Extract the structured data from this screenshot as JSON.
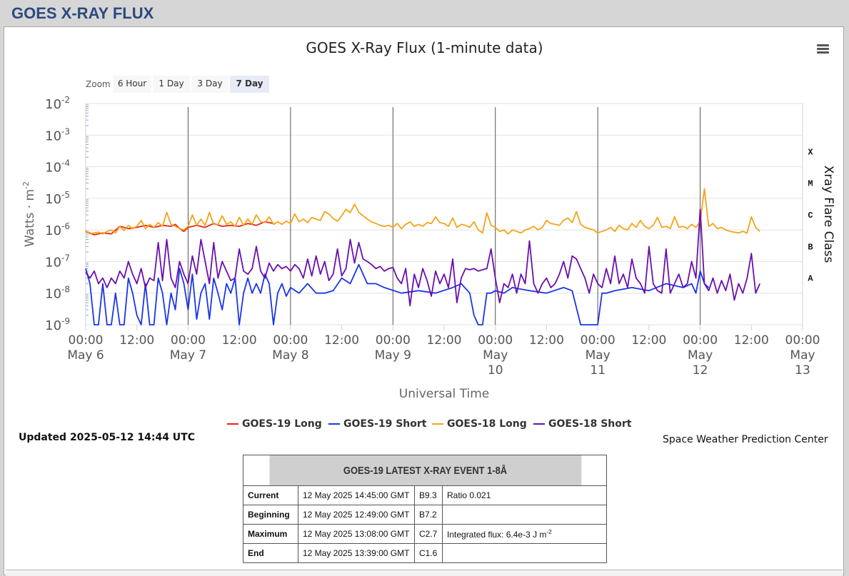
{
  "page": {
    "header": "GOES X-RAY FLUX"
  },
  "toolbar": {
    "zoom_label": "Zoom",
    "zoom_buttons": [
      "6 Hour",
      "1 Day",
      "3 Day",
      "7 Day"
    ],
    "active_zoom": "7 Day",
    "menu_icon": "hamburger-menu-icon"
  },
  "chart_data": {
    "type": "line",
    "title": "GOES X-Ray Flux (1-minute data)",
    "xlabel": "Universal Time",
    "ylabel": "Watts · m",
    "ylabel_sup": "-2",
    "y2label": "Xray Flare Class",
    "y_scale": "log",
    "ylim": [
      1e-09,
      0.01
    ],
    "y_ticks": [
      {
        "base": "10",
        "exp": "-2",
        "value": 0.01
      },
      {
        "base": "10",
        "exp": "-3",
        "value": 0.001
      },
      {
        "base": "10",
        "exp": "-4",
        "value": 0.0001
      },
      {
        "base": "10",
        "exp": "-5",
        "value": 1e-05
      },
      {
        "base": "10",
        "exp": "-6",
        "value": 1e-06
      },
      {
        "base": "10",
        "exp": "-7",
        "value": 1e-07
      },
      {
        "base": "10",
        "exp": "-8",
        "value": 1e-08
      },
      {
        "base": "10",
        "exp": "-9",
        "value": 1e-09
      }
    ],
    "flare_classes": [
      {
        "label": "X",
        "value": 0.0001
      },
      {
        "label": "M",
        "value": 1e-05
      },
      {
        "label": "C",
        "value": 1e-06
      },
      {
        "label": "B",
        "value": 1e-07
      },
      {
        "label": "A",
        "value": 1e-08
      }
    ],
    "xlim": [
      "2025-05-06 00:00",
      "2025-05-13 00:00"
    ],
    "x_ticks": [
      {
        "time": "00:00",
        "date": "May 6",
        "t": 0
      },
      {
        "time": "12:00",
        "date": "",
        "t": 12
      },
      {
        "time": "00:00",
        "date": "May 7",
        "t": 24
      },
      {
        "time": "12:00",
        "date": "",
        "t": 36
      },
      {
        "time": "00:00",
        "date": "May 8",
        "t": 48
      },
      {
        "time": "12:00",
        "date": "",
        "t": 60
      },
      {
        "time": "00:00",
        "date": "May 9",
        "t": 72
      },
      {
        "time": "12:00",
        "date": "",
        "t": 84
      },
      {
        "time": "00:00",
        "date": "May|10",
        "t": 96
      },
      {
        "time": "12:00",
        "date": "",
        "t": 108
      },
      {
        "time": "00:00",
        "date": "May|11",
        "t": 120
      },
      {
        "time": "12:00",
        "date": "",
        "t": 132
      },
      {
        "time": "00:00",
        "date": "May|12",
        "t": 144
      },
      {
        "time": "12:00",
        "date": "",
        "t": 156
      },
      {
        "time": "00:00",
        "date": "May|13",
        "t": 168
      }
    ],
    "day_lines": [
      24,
      48,
      72,
      96,
      120,
      144
    ],
    "series": [
      {
        "name": "GOES-19 Long",
        "color": "#e8231a",
        "x": [
          0,
          2,
          4,
          6,
          8,
          10,
          12,
          14,
          16,
          18,
          20,
          21,
          22,
          23,
          24,
          26,
          28,
          30,
          32,
          34,
          36,
          38,
          40,
          42,
          44
        ],
        "y": [
          9e-07,
          7e-07,
          8e-07,
          7.5e-07,
          1.3e-06,
          1.1e-06,
          1.2e-06,
          1.4e-06,
          1.2e-06,
          1.4e-06,
          1.3e-06,
          1.5e-06,
          1.1e-06,
          9e-07,
          1.2e-06,
          1.4e-06,
          1.2e-06,
          1.6e-06,
          1.3e-06,
          1.4e-06,
          1.3e-06,
          1.6e-06,
          1.4e-06,
          1.8e-06,
          1.6e-06
        ]
      },
      {
        "name": "GOES-19 Short",
        "color": "#1a35e8",
        "x": [
          0,
          1,
          2,
          3,
          4,
          5,
          6,
          7,
          8,
          9,
          10,
          11,
          12,
          13,
          14,
          15,
          16,
          17,
          18,
          19,
          20,
          21,
          22,
          23,
          24,
          25,
          26,
          27,
          28,
          29,
          30,
          31,
          32,
          33,
          34,
          35,
          36,
          37,
          38,
          39,
          40,
          41,
          42,
          43,
          44,
          45,
          46,
          47,
          48,
          50,
          52,
          54,
          56,
          58,
          60,
          62,
          64,
          66,
          68,
          70,
          74,
          78,
          82,
          86,
          88,
          90,
          91,
          92,
          93,
          94,
          95,
          96,
          98,
          100,
          104,
          108,
          112,
          114,
          116,
          117,
          118,
          119,
          120,
          121,
          122,
          124,
          128,
          132,
          136,
          140,
          142,
          143,
          144,
          145,
          146
        ],
        "y": [
          6e-08,
          2e-08,
          1e-09,
          1e-09,
          2e-08,
          1e-09,
          1e-09,
          1e-08,
          1e-09,
          1e-09,
          3e-08,
          1e-08,
          2e-09,
          1e-09,
          2e-08,
          1e-09,
          1e-09,
          3e-08,
          1e-08,
          1e-09,
          1e-08,
          3e-09,
          6e-08,
          2e-08,
          3e-09,
          4e-08,
          1.5e-09,
          1e-08,
          2e-08,
          1.5e-09,
          3e-08,
          1e-08,
          3e-09,
          2e-08,
          1e-08,
          3e-08,
          1e-09,
          1e-08,
          3e-08,
          1e-08,
          2e-08,
          1e-08,
          4e-08,
          2e-08,
          1e-09,
          1e-08,
          2e-08,
          8e-09,
          1.5e-08,
          1e-08,
          2e-08,
          1e-08,
          1e-08,
          1.2e-08,
          3e-08,
          2e-08,
          8e-08,
          2e-08,
          2e-08,
          1.5e-08,
          1e-08,
          1.2e-08,
          1e-08,
          1.5e-08,
          2e-08,
          1e-08,
          2e-09,
          1e-09,
          1e-09,
          1e-08,
          1e-08,
          1.2e-08,
          1e-08,
          1.5e-08,
          1.2e-08,
          1e-08,
          1.5e-08,
          1.2e-08,
          1e-09,
          1e-09,
          1e-09,
          1e-09,
          1e-09,
          1e-08,
          1e-08,
          1.2e-08,
          1.5e-08,
          1.2e-08,
          2e-08,
          1.5e-08,
          2e-08,
          1e-08,
          5e-08,
          2e-08,
          1.5e-08
        ]
      },
      {
        "name": "GOES-18 Long",
        "color": "#f5a31a",
        "x": [
          0,
          1,
          2,
          3,
          4,
          5,
          6,
          7,
          8,
          9,
          10,
          11,
          12,
          13,
          14,
          15,
          16,
          17,
          18,
          19,
          20,
          21,
          22,
          23,
          24,
          25,
          26,
          27,
          28,
          29,
          30,
          31,
          32,
          33,
          34,
          35,
          36,
          37,
          38,
          39,
          40,
          41,
          42,
          43,
          44,
          45,
          46,
          47,
          48,
          49,
          50,
          51,
          52,
          53,
          54,
          55,
          56,
          57,
          58,
          59,
          60,
          61,
          62,
          63,
          64,
          65,
          66,
          67,
          68,
          69,
          70,
          71,
          72,
          73,
          74,
          75,
          76,
          77,
          78,
          79,
          80,
          81,
          82,
          83,
          84,
          85,
          86,
          87,
          88,
          89,
          90,
          91,
          92,
          93,
          94,
          95,
          96,
          97,
          98,
          99,
          100,
          101,
          102,
          103,
          104,
          105,
          106,
          107,
          108,
          109,
          110,
          111,
          112,
          113,
          114,
          115,
          116,
          117,
          118,
          119,
          120,
          121,
          122,
          123,
          124,
          125,
          126,
          127,
          128,
          129,
          130,
          131,
          132,
          133,
          134,
          135,
          136,
          137,
          138,
          139,
          140,
          141,
          142,
          143,
          144,
          145,
          146,
          147,
          148,
          149,
          150,
          151,
          152,
          153,
          154,
          155,
          156,
          157,
          158
        ],
        "y": [
          9.5e-07,
          7.5e-07,
          8e-07,
          8.5e-07,
          7.5e-07,
          9e-07,
          1e-06,
          8e-07,
          1.3e-06,
          9.5e-07,
          1.4e-06,
          1.1e-06,
          1.3e-06,
          2e-06,
          1.1e-06,
          1.5e-06,
          1.2e-06,
          1.7e-06,
          1.3e-06,
          3.6e-06,
          1.5e-06,
          1.3e-06,
          1.1e-06,
          1e-06,
          1.3e-06,
          3e-06,
          1.4e-06,
          2.2e-06,
          1.4e-06,
          3.6e-06,
          1.5e-06,
          1.5e-06,
          2.8e-06,
          1.5e-06,
          1.8e-06,
          1.3e-06,
          2.5e-06,
          1.4e-06,
          2.2e-06,
          1.5e-06,
          3e-06,
          1.8e-06,
          1.7e-06,
          2.6e-06,
          1.5e-06,
          1.8e-06,
          1.5e-06,
          1.9e-06,
          1.6e-06,
          3.2e-06,
          1.8e-06,
          2.2e-06,
          1.7e-06,
          2.5e-06,
          2.2e-06,
          2e-06,
          3.8e-06,
          3.2e-06,
          2.3e-06,
          1.9e-06,
          2.8e-06,
          4.5e-06,
          3.5e-06,
          6.5e-06,
          3.6e-06,
          2.8e-06,
          2.2e-06,
          1.8e-06,
          1.6e-06,
          1.4e-06,
          1.3e-06,
          1.4e-06,
          1.2e-06,
          1.6e-06,
          1.1e-06,
          1.5e-06,
          1.8e-06,
          1.3e-06,
          1.5e-06,
          1.3e-06,
          1.7e-06,
          1.6e-06,
          2.6e-06,
          1.7e-06,
          1.6e-06,
          1.3e-06,
          2.4e-06,
          1.2e-06,
          1.5e-06,
          1.4e-06,
          1.2e-06,
          1.8e-06,
          1e-06,
          8e-07,
          3.5e-06,
          1.4e-06,
          1.2e-06,
          9e-07,
          1e-06,
          7.5e-07,
          1e-06,
          9e-07,
          8e-07,
          1e-06,
          1.1e-06,
          1.3e-06,
          1e-06,
          1.2e-06,
          2e-06,
          1.6e-06,
          1.5e-06,
          1.4e-06,
          2e-06,
          2.4e-06,
          1.7e-06,
          3.8e-06,
          1.5e-06,
          1.2e-06,
          1.1e-06,
          1e-06,
          8e-07,
          9e-07,
          1e-06,
          1.2e-06,
          9e-07,
          1.4e-06,
          1.1e-06,
          1e-06,
          1.6e-06,
          1.2e-06,
          2e-06,
          1.3e-06,
          1.1e-06,
          1.4e-06,
          2.5e-06,
          1.2e-06,
          1.3e-06,
          1.1e-06,
          2.6e-06,
          1.2e-06,
          1.3e-06,
          1.1e-06,
          1.5e-06,
          1.2e-06,
          1.8e-06,
          2e-05,
          1.3e-06,
          1.6e-06,
          1.1e-06,
          1.2e-06,
          1e-06,
          9e-07,
          8.5e-07,
          8e-07,
          9e-07,
          8e-07,
          2.6e-06,
          1.2e-06,
          9e-07
        ]
      },
      {
        "name": "GOES-18 Short",
        "color": "#6a0fb0",
        "x": [
          0,
          1,
          2,
          3,
          4,
          5,
          6,
          7,
          8,
          9,
          10,
          11,
          12,
          13,
          14,
          15,
          16,
          17,
          18,
          19,
          20,
          21,
          22,
          23,
          24,
          25,
          26,
          27,
          28,
          29,
          30,
          31,
          32,
          33,
          34,
          35,
          36,
          37,
          38,
          39,
          40,
          41,
          42,
          43,
          44,
          45,
          46,
          47,
          48,
          49,
          50,
          51,
          52,
          53,
          54,
          55,
          56,
          57,
          58,
          59,
          60,
          61,
          62,
          63,
          64,
          65,
          66,
          67,
          68,
          69,
          70,
          71,
          72,
          73,
          74,
          75,
          76,
          77,
          78,
          79,
          80,
          81,
          82,
          83,
          84,
          85,
          86,
          87,
          88,
          89,
          90,
          91,
          92,
          93,
          94,
          95,
          96,
          97,
          98,
          99,
          100,
          101,
          102,
          103,
          104,
          105,
          106,
          107,
          108,
          109,
          110,
          111,
          112,
          113,
          114,
          115,
          116,
          117,
          118,
          119,
          120,
          121,
          122,
          123,
          124,
          125,
          126,
          127,
          128,
          129,
          130,
          131,
          132,
          133,
          134,
          135,
          136,
          137,
          138,
          139,
          140,
          141,
          142,
          143,
          144,
          145,
          146,
          147,
          148,
          149,
          150,
          151,
          152,
          153,
          154,
          155,
          156,
          157,
          158
        ],
        "y": [
          4.5e-08,
          3e-08,
          5e-08,
          2e-08,
          3e-08,
          1.5e-08,
          3e-08,
          2e-08,
          5e-08,
          3e-08,
          1e-07,
          4e-08,
          2e-08,
          6e-08,
          1.5e-08,
          3e-08,
          2.5e-08,
          4e-07,
          2.5e-08,
          5e-07,
          3e-08,
          1.5e-08,
          1e-07,
          4e-08,
          2e-08,
          1.5e-07,
          4e-08,
          5e-07,
          1e-07,
          2e-08,
          4e-07,
          3e-08,
          1e-07,
          5e-08,
          2.5e-08,
          3e-08,
          2.5e-07,
          5e-08,
          4e-08,
          6e-08,
          3e-07,
          5e-08,
          3e-08,
          9e-08,
          5e-08,
          8e-08,
          6e-08,
          7e-08,
          5e-08,
          8e-08,
          6e-08,
          3e-08,
          1.2e-07,
          3.5e-08,
          1.5e-07,
          4e-08,
          1e-07,
          2.5e-08,
          4e-08,
          2.5e-07,
          3.5e-08,
          6e-08,
          5e-07,
          9e-08,
          4e-07,
          1.2e-07,
          1e-07,
          8e-08,
          6e-08,
          7e-08,
          5e-08,
          6e-08,
          6.5e-08,
          3e-08,
          2e-08,
          6e-08,
          4e-09,
          4e-08,
          1.5e-08,
          6e-08,
          2.5e-08,
          8e-09,
          5e-08,
          2e-08,
          4e-08,
          1.5e-08,
          1.2e-07,
          5e-09,
          3e-08,
          6e-08,
          5.5e-08,
          6e-08,
          5e-08,
          5.5e-08,
          6e-08,
          2.5e-07,
          3e-08,
          5e-09,
          2e-08,
          1.5e-08,
          4e-08,
          1e-08,
          4e-08,
          2e-08,
          4.5e-07,
          2e-08,
          1e-08,
          2e-08,
          3e-08,
          1.5e-08,
          2e-08,
          4e-08,
          1e-07,
          3e-08,
          1.5e-07,
          1.2e-07,
          6e-08,
          3e-08,
          1e-08,
          4e-08,
          2e-08,
          1.5e-08,
          6e-08,
          2e-08,
          1.5e-07,
          2e-08,
          4e-08,
          1.5e-08,
          1.2e-07,
          3e-08,
          2e-08,
          1e-08,
          3e-07,
          2e-08,
          1.2e-08,
          1e-08,
          2.5e-07,
          1e-08,
          2e-08,
          4e-08,
          1.5e-08,
          2e-08,
          1e-07,
          3e-08,
          4.5e-06,
          2e-08,
          1.2e-08,
          3e-08,
          1e-08,
          2.5e-08,
          1.2e-08,
          4e-08,
          6e-09,
          2e-08,
          1e-08,
          3e-08,
          1.8e-07,
          1e-08,
          2e-08
        ]
      }
    ]
  },
  "status": {
    "updated": "Updated 2025-05-12 14:44 UTC",
    "credit": "Space Weather Prediction Center"
  },
  "event_table": {
    "heading": "GOES-19 LATEST X-RAY EVENT 1-8Å",
    "rows": [
      {
        "label": "Current",
        "time": "12 May 2025 14:45:00 GMT",
        "class": "B9.3",
        "extra": "Ratio 0.021"
      },
      {
        "label": "Beginning",
        "time": "12 May 2025 12:49:00 GMT",
        "class": "B7.2",
        "extra": ""
      },
      {
        "label": "Maximum",
        "time": "12 May 2025 13:08:00 GMT",
        "class": "C2.7",
        "extra": "Integrated flux: 6.4e-3 J m",
        "extra_sup": "-2"
      },
      {
        "label": "End",
        "time": "12 May 2025 13:39:00 GMT",
        "class": "C1.6",
        "extra": ""
      }
    ]
  }
}
